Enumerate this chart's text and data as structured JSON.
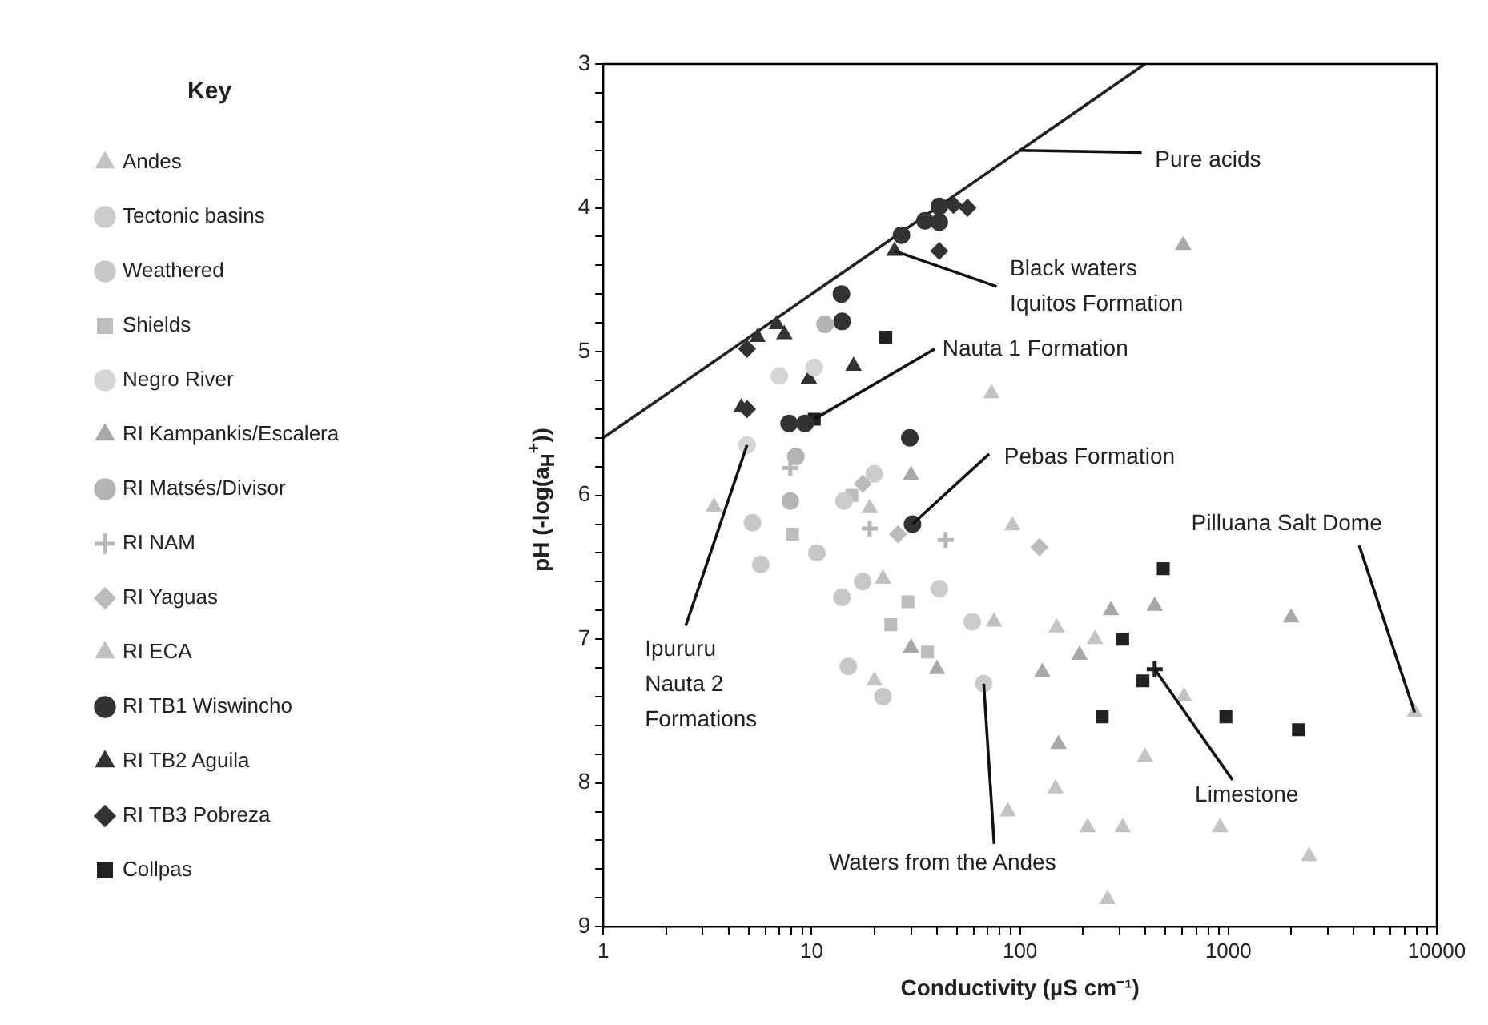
{
  "chart_data": {
    "type": "scatter",
    "xlabel": "Conductivity (µS cm⁻¹)",
    "ylabel": "pH (-log(a$_{H}$$^{+}$))",
    "legend_title": "Key",
    "legend": "left",
    "log": "x",
    "xlim": [
      1,
      10000
    ],
    "ylim": [
      9,
      3
    ],
    "xticks": [
      1,
      {
        "value": 2,
        "label": null
      },
      {
        "value": 3,
        "label": null
      },
      {
        "value": 4,
        "label": null
      },
      {
        "value": 5,
        "label": null
      },
      {
        "value": 6,
        "label": null
      },
      {
        "value": 7,
        "label": null
      },
      {
        "value": 8,
        "label": null
      },
      {
        "value": 9,
        "label": null
      },
      10,
      {
        "value": 20,
        "label": null
      },
      {
        "value": 30,
        "label": null
      },
      {
        "value": 40,
        "label": null
      },
      {
        "value": 50,
        "label": null
      },
      {
        "value": 60,
        "label": null
      },
      {
        "value": 70,
        "label": null
      },
      {
        "value": 80,
        "label": null
      },
      {
        "value": 90,
        "label": null
      },
      100,
      {
        "value": 200,
        "label": null
      },
      {
        "value": 300,
        "label": null
      },
      {
        "value": 400,
        "label": null
      },
      {
        "value": 500,
        "label": null
      },
      {
        "value": 600,
        "label": null
      },
      {
        "value": 700,
        "label": null
      },
      {
        "value": 800,
        "label": null
      },
      {
        "value": 900,
        "label": null
      },
      1000,
      {
        "value": 2000,
        "label": null
      },
      {
        "value": 3000,
        "label": null
      },
      {
        "value": 4000,
        "label": null
      },
      {
        "value": 5000,
        "label": null
      },
      {
        "value": 6000,
        "label": null
      },
      {
        "value": 7000,
        "label": null
      },
      {
        "value": 8000,
        "label": null
      },
      {
        "value": 9000,
        "label": null
      },
      10000
    ],
    "yticks": [
      3,
      {
        "value": 3.2,
        "label": null
      },
      {
        "value": 3.4,
        "label": null
      },
      {
        "value": 3.6,
        "label": null
      },
      {
        "value": 3.8,
        "label": null
      },
      4,
      {
        "value": 4.2,
        "label": null
      },
      {
        "value": 4.4,
        "label": null
      },
      {
        "value": 4.6,
        "label": null
      },
      {
        "value": 4.8,
        "label": null
      },
      5,
      {
        "value": 5.2,
        "label": null
      },
      {
        "value": 5.4,
        "label": null
      },
      {
        "value": 5.6,
        "label": null
      },
      {
        "value": 5.8,
        "label": null
      },
      6,
      {
        "value": 6.2,
        "label": null
      },
      {
        "value": 6.4,
        "label": null
      },
      {
        "value": 6.6,
        "label": null
      },
      {
        "value": 6.8,
        "label": null
      },
      7,
      {
        "value": 7.2,
        "label": null
      },
      {
        "value": 7.4,
        "label": null
      },
      {
        "value": 7.6,
        "label": null
      },
      {
        "value": 7.8,
        "label": null
      },
      8,
      {
        "value": 8.2,
        "label": null
      },
      {
        "value": 8.4,
        "label": null
      },
      {
        "value": 8.6,
        "label": null
      },
      {
        "value": 8.8,
        "label": null
      },
      9
    ],
    "series": [
      {
        "name": "Andes",
        "marker": "triangle",
        "color": "#c4c4c4",
        "x": [
          92,
          150,
          229,
          211,
          311,
          263,
          912,
          2440,
          7830,
          87.5,
          398,
          148,
          613,
          73,
          20
        ],
        "values": [
          6.21,
          6.92,
          7.0,
          8.31,
          8.31,
          8.81,
          8.31,
          8.51,
          7.51,
          8.2,
          7.82,
          8.04,
          7.4,
          5.29,
          7.29
        ]
      },
      {
        "name": "Tectonic basins",
        "marker": "circle",
        "color": "#cccccc",
        "x": [
          41,
          59,
          67,
          20,
          14.3
        ],
        "values": [
          6.65,
          6.88,
          7.31,
          5.85,
          6.04
        ]
      },
      {
        "name": "Weathered",
        "marker": "circle",
        "color": "#c8c8c8",
        "x": [
          10.6,
          15,
          14,
          17.6,
          22,
          5.2,
          5.7
        ],
        "values": [
          6.4,
          7.19,
          6.71,
          6.6,
          7.4,
          6.19,
          6.48
        ]
      },
      {
        "name": "Shields",
        "marker": "square",
        "color": "#bdbdbd",
        "x": [
          8.1,
          15.6,
          24,
          36,
          29
        ],
        "values": [
          6.27,
          6.0,
          6.9,
          7.09,
          6.74
        ]
      },
      {
        "name": "Negro River",
        "marker": "circle",
        "color": "#d6d6d6",
        "x": [
          7.0,
          4.9,
          10.3
        ],
        "values": [
          5.17,
          5.65,
          5.11
        ]
      },
      {
        "name": "RI Kampankis/Escalera",
        "marker": "triangle",
        "color": "#a8a8a8",
        "x": [
          273,
          443,
          2000,
          607,
          30,
          30,
          40,
          193,
          128,
          153
        ],
        "values": [
          6.8,
          6.77,
          6.85,
          4.26,
          5.86,
          7.06,
          7.21,
          7.11,
          7.23,
          7.73
        ]
      },
      {
        "name": "RI Matsés/Divisor",
        "marker": "circle",
        "color": "#b4b4b4",
        "x": [
          11.6,
          8.4,
          7.9
        ],
        "values": [
          4.81,
          5.73,
          6.04
        ]
      },
      {
        "name": "RI NAM",
        "marker": "cross",
        "color": "#b8b8b8",
        "x": [
          7.9,
          44,
          19
        ],
        "values": [
          5.81,
          6.31,
          6.23
        ]
      },
      {
        "name": "RI Yaguas",
        "marker": "diamond",
        "color": "#bcbcbc",
        "x": [
          17.6,
          26,
          124
        ],
        "values": [
          5.92,
          6.27,
          6.36
        ]
      },
      {
        "name": "RI ECA",
        "marker": "triangle",
        "color": "#c0c0c0",
        "x": [
          22,
          19,
          75,
          3.4
        ],
        "values": [
          6.58,
          6.09,
          6.88,
          6.08
        ]
      },
      {
        "name": "RI TB1 Wiswincho",
        "marker": "circle",
        "color": "#333333",
        "x": [
          27,
          35,
          41,
          41,
          13.9,
          14,
          7.8,
          9.3,
          29.6,
          30.5
        ],
        "values": [
          4.19,
          4.09,
          3.99,
          4.1,
          4.6,
          4.79,
          5.5,
          5.5,
          5.6,
          6.2
        ]
      },
      {
        "name": "RI TB2 Aguila",
        "marker": "triangle",
        "color": "#333333",
        "x": [
          25,
          5.5,
          6.8,
          7.4,
          9.7,
          15.9,
          4.6
        ],
        "values": [
          4.3,
          4.9,
          4.81,
          4.88,
          5.19,
          5.1,
          5.39
        ]
      },
      {
        "name": "RI TB3 Pobreza",
        "marker": "diamond",
        "color": "#333333",
        "x": [
          56,
          48,
          41,
          4.9,
          4.9
        ],
        "values": [
          4.0,
          3.98,
          4.3,
          4.98,
          5.4
        ]
      },
      {
        "name": "Collpas",
        "marker": "square",
        "color": "#222222",
        "x": [
          22.7,
          10.3,
          487,
          311,
          389,
          248,
          973,
          2170
        ],
        "values": [
          4.9,
          5.47,
          6.51,
          7.0,
          7.29,
          7.54,
          7.54,
          7.63
        ]
      },
      {
        "type": "scatter",
        "marker": "cross",
        "color": "#222222",
        "x": [
          443
        ],
        "values": [
          7.21
        ]
      },
      {
        "type": "line",
        "marker": "none",
        "line_style": "solid",
        "color": "#222222",
        "x": [
          1,
          398
        ],
        "values": [
          5.6,
          3.0
        ]
      }
    ],
    "annotations": [
      {
        "text": "Pure acids",
        "x": 100,
        "y": 3.6
      },
      {
        "text": "Black waters\nIquitos Formation",
        "x": 25,
        "y": 4.3
      },
      {
        "text": "Nauta 1 Formation",
        "x": 10.3,
        "y": 5.47
      },
      {
        "text": "Pebas Formation",
        "x": 30.5,
        "y": 6.2
      },
      {
        "text": "Ipururu\nNauta 2\nFormations",
        "x": 4.9,
        "y": 5.65
      },
      {
        "text": "Waters from the Andes",
        "x": 67,
        "y": 7.31
      },
      {
        "text": "Limestone",
        "x": 443,
        "y": 7.21
      },
      {
        "text": "Pilluana Salt Dome",
        "x": 7830,
        "y": 7.51
      }
    ]
  }
}
